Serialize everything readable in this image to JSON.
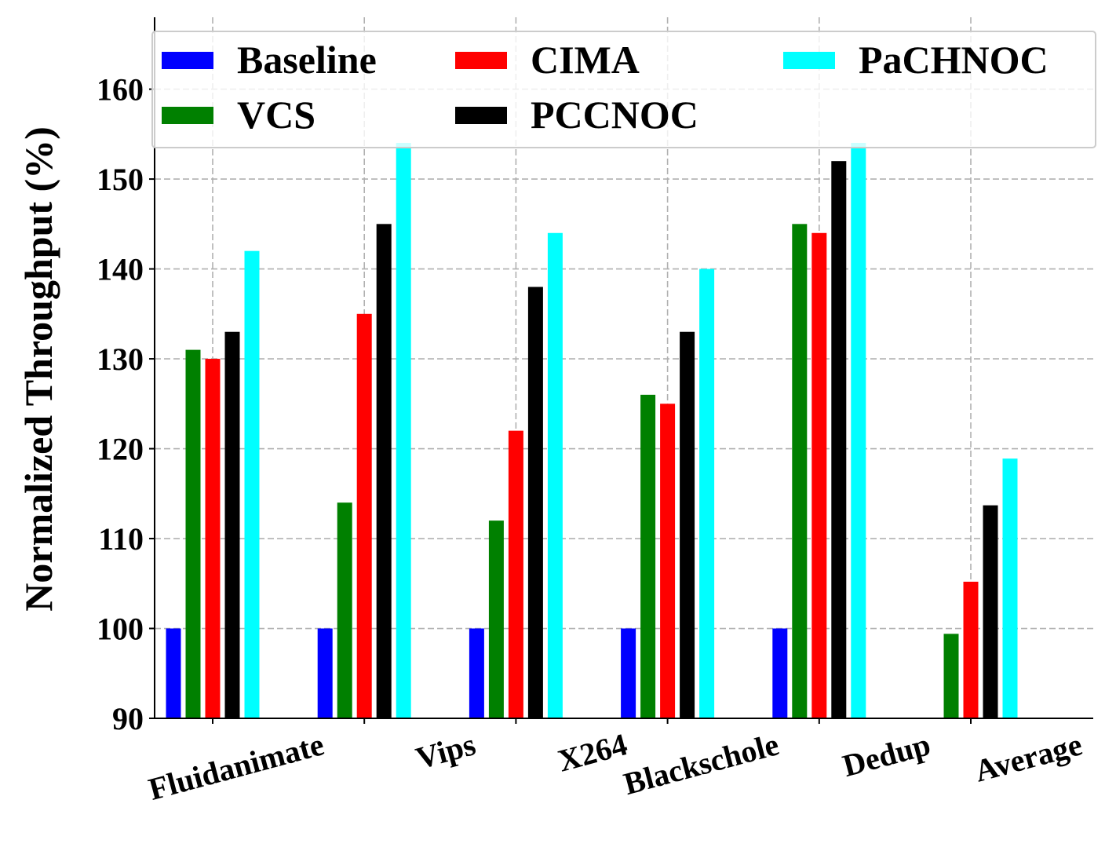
{
  "chart_data": {
    "type": "bar",
    "title": "",
    "xlabel": "",
    "ylabel": "Normalized Throughput (%)",
    "ylim": [
      90,
      168
    ],
    "yticks": [
      90,
      100,
      110,
      120,
      130,
      140,
      150,
      160
    ],
    "grid": true,
    "legend_position": "top",
    "categories": [
      "Fluidanimate",
      "Vips",
      "X264",
      "Blackschole",
      "Dedup",
      "Average"
    ],
    "series": [
      {
        "name": "Baseline",
        "color": "#0000ff",
        "values": [
          100,
          100,
          100,
          100,
          100,
          90
        ]
      },
      {
        "name": "VCS",
        "color": "#008000",
        "values": [
          131,
          114,
          112,
          126,
          145,
          99.4
        ]
      },
      {
        "name": "CIMA",
        "color": "#ff0000",
        "values": [
          130,
          135,
          122,
          125,
          144,
          105.2
        ]
      },
      {
        "name": "PCCNOC",
        "color": "#000000",
        "values": [
          133,
          145,
          138,
          133,
          152,
          113.7
        ]
      },
      {
        "name": "PaCHNOC",
        "color": "#00ffff",
        "values": [
          142,
          155,
          144,
          140,
          155,
          118.9
        ]
      }
    ]
  }
}
